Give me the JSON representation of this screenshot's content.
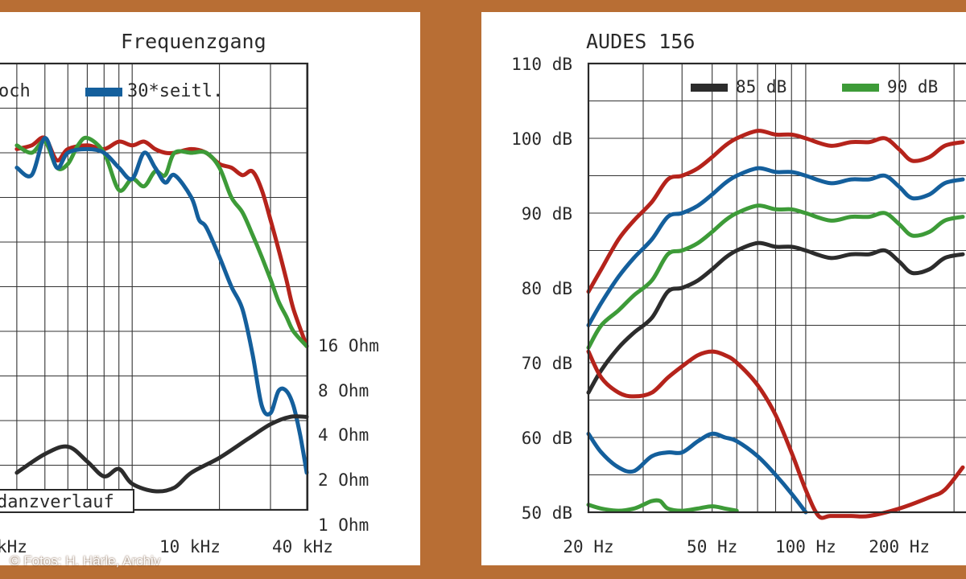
{
  "credit": "© Fotos: H. Härle, Archiv",
  "chart_data": [
    {
      "type": "line",
      "title": "Frequenzgang",
      "x_tick_labels": [
        "kHz",
        "10 kHz",
        "40 kHz"
      ],
      "right_axis_tick_labels": [
        "16 Ohm",
        "8 Ohm",
        "4 Ohm",
        "2 Ohm",
        "1 Ohm"
      ],
      "legend": [
        "och",
        "30*seitl."
      ],
      "annotation": "danzverlauf",
      "grid": true,
      "colors": {
        "red": "#b5231b",
        "green": "#3d9b38",
        "blue": "#145f9c",
        "black": "#2c2c2c"
      },
      "series": [
        {
          "name": "och",
          "color": "red",
          "x": [
            4,
            4.5,
            5,
            5.5,
            6,
            7,
            8,
            9,
            10,
            11,
            12,
            13,
            14,
            16,
            18,
            20,
            22,
            24,
            26,
            28,
            30,
            32,
            34,
            36,
            40
          ],
          "y": [
            93.5,
            94,
            95,
            92,
            93.5,
            94,
            93.5,
            94.5,
            94,
            94.5,
            93.5,
            93,
            93,
            93.5,
            93,
            91.5,
            91,
            90,
            90.5,
            88,
            84,
            80,
            76,
            72,
            67
          ]
        },
        {
          "name": "",
          "color": "green",
          "x": [
            4,
            4.5,
            5,
            5.5,
            6,
            6.5,
            7,
            8,
            9,
            10,
            11,
            12,
            13,
            14,
            16,
            18,
            20,
            22,
            24,
            26,
            28,
            30,
            32,
            34,
            36,
            40
          ],
          "y": [
            94,
            93,
            94.5,
            91,
            91.5,
            94,
            95,
            93,
            88,
            89.5,
            88.5,
            90.5,
            90,
            93,
            93,
            93,
            91,
            87,
            85,
            82,
            79,
            76,
            73,
            71,
            69,
            67
          ]
        },
        {
          "name": "30*seitl.",
          "color": "blue",
          "x": [
            4,
            4.5,
            5,
            5.5,
            6,
            7,
            8,
            9,
            10,
            11,
            12,
            13,
            14,
            16,
            17,
            18,
            20,
            22,
            24,
            26,
            28,
            30,
            32,
            34,
            36,
            38,
            40
          ],
          "y": [
            91,
            90,
            95,
            91,
            93,
            93.5,
            93,
            91,
            89.5,
            93,
            91,
            89,
            90,
            87,
            84,
            83,
            79,
            75,
            72,
            66,
            59,
            58,
            61,
            61,
            59,
            55,
            50
          ]
        },
        {
          "name": "",
          "color": "black",
          "x": [
            4,
            5,
            6,
            7,
            8,
            9,
            10,
            12,
            14,
            16,
            20,
            25,
            30,
            35,
            40
          ],
          "y": [
            50,
            52.5,
            53.5,
            51.5,
            49.5,
            50.5,
            48.5,
            47.5,
            48,
            50,
            52,
            54.5,
            56.5,
            57.5,
            57.5
          ]
        }
      ]
    },
    {
      "type": "line",
      "title": "AUDES 156",
      "x_tick_labels": [
        "20 Hz",
        "50 Hz",
        "100 Hz",
        "200 Hz"
      ],
      "y_tick_labels": [
        "110 dB",
        "100 dB",
        "90 dB",
        "80 dB",
        "70 dB",
        "60 dB",
        "50 dB"
      ],
      "ylim": [
        50,
        110
      ],
      "legend": [
        "85 dB",
        "90 dB"
      ],
      "grid": true,
      "colors": {
        "black": "#2c2c2c",
        "green": "#3d9b38",
        "blue": "#145f9c",
        "red": "#b5231b"
      },
      "series": [
        {
          "name": "85 dB",
          "color": "black",
          "x": [
            20,
            22,
            25,
            28,
            32,
            36,
            40,
            45,
            50,
            55,
            60,
            70,
            80,
            90,
            100,
            120,
            140,
            160,
            180,
            200,
            220,
            250,
            280,
            320
          ],
          "y": [
            66,
            69,
            72,
            74,
            76,
            79.5,
            80,
            81,
            82.5,
            84,
            85,
            86,
            85.5,
            85.5,
            85,
            84,
            84.5,
            84.5,
            85,
            83.5,
            82,
            82.5,
            84,
            84.5
          ]
        },
        {
          "name": "90 dB",
          "color": "green",
          "x": [
            20,
            22,
            25,
            28,
            32,
            36,
            40,
            45,
            50,
            55,
            60,
            70,
            80,
            90,
            100,
            120,
            140,
            160,
            180,
            200,
            220,
            250,
            280,
            320
          ],
          "y": [
            72,
            75,
            77,
            79,
            81,
            84.5,
            85,
            86,
            87.5,
            89,
            90,
            91,
            90.5,
            90.5,
            90,
            89,
            89.5,
            89.5,
            90,
            88.5,
            87,
            87.5,
            89,
            89.5
          ]
        },
        {
          "name": "",
          "color": "blue",
          "x": [
            20,
            22,
            25,
            28,
            32,
            36,
            40,
            45,
            50,
            55,
            60,
            70,
            80,
            90,
            100,
            120,
            140,
            160,
            180,
            200,
            220,
            250,
            280,
            320
          ],
          "y": [
            75,
            78,
            81.5,
            84,
            86.5,
            89.5,
            90,
            91,
            92.5,
            94,
            95,
            96,
            95.5,
            95.5,
            95,
            94,
            94.5,
            94.5,
            95,
            93.5,
            92,
            92.5,
            94,
            94.5
          ]
        },
        {
          "name": "",
          "color": "red",
          "x": [
            20,
            22,
            25,
            28,
            32,
            36,
            40,
            45,
            50,
            55,
            60,
            70,
            80,
            90,
            100,
            120,
            140,
            160,
            180,
            200,
            220,
            250,
            280,
            320
          ],
          "y": [
            79.5,
            82.5,
            86.5,
            89,
            91.5,
            94.5,
            95,
            96,
            97.5,
            99,
            100,
            101,
            100.5,
            100.5,
            100,
            99,
            99.5,
            99.5,
            100,
            98.5,
            97,
            97.5,
            99,
            99.5
          ]
        },
        {
          "name": "",
          "color": "red",
          "x": [
            20,
            22,
            25,
            28,
            32,
            36,
            40,
            45,
            50,
            55,
            60,
            70,
            80,
            90,
            100,
            110,
            120,
            140,
            160,
            200,
            250,
            280,
            320
          ],
          "y": [
            71.5,
            68,
            66,
            65.5,
            66,
            68,
            69.5,
            71,
            71.5,
            71,
            70,
            67,
            63,
            58,
            53,
            49.5,
            49.5,
            49.5,
            49.5,
            50.5,
            52,
            53,
            56
          ]
        },
        {
          "name": "",
          "color": "blue",
          "x": [
            20,
            22,
            25,
            28,
            32,
            36,
            40,
            45,
            50,
            55,
            60,
            70,
            80,
            90,
            100
          ],
          "y": [
            60.5,
            58,
            56,
            55.5,
            57.5,
            58,
            58,
            59.5,
            60.5,
            60,
            59.5,
            57.5,
            55,
            52.5,
            50
          ]
        },
        {
          "name": "",
          "color": "green",
          "x": [
            20,
            22,
            25,
            28,
            30,
            32,
            34,
            36,
            40,
            45,
            50,
            55,
            60
          ],
          "y": [
            51,
            50.5,
            50.2,
            50.5,
            51,
            51.5,
            51.5,
            50.5,
            50.2,
            50.5,
            50.8,
            50.5,
            50.2
          ]
        }
      ]
    }
  ]
}
